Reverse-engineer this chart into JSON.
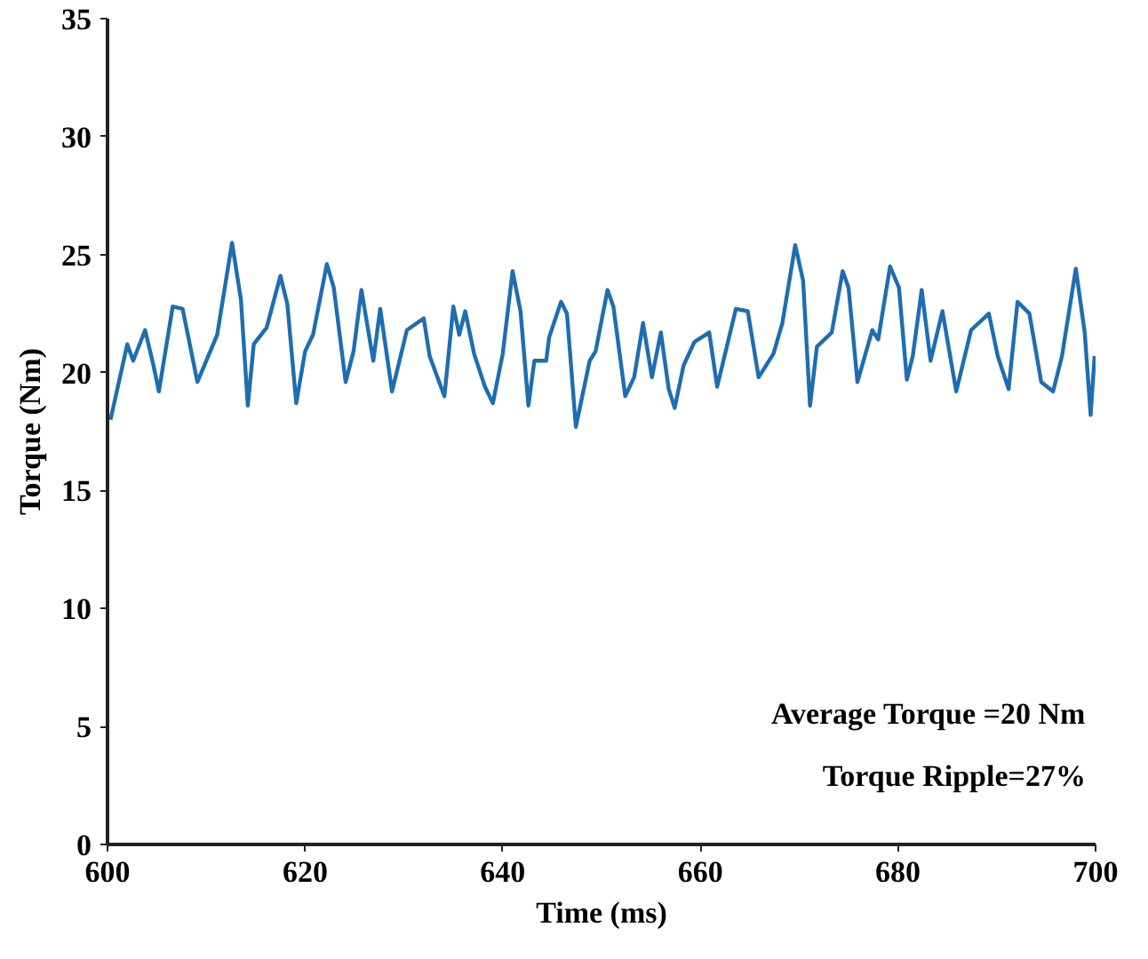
{
  "chart_data": {
    "type": "line",
    "xlabel": "Time (ms)",
    "ylabel": "Torque (Nm)",
    "xlim": [
      600,
      700
    ],
    "ylim": [
      0,
      35
    ],
    "xticks": [
      600,
      620,
      640,
      660,
      680,
      700
    ],
    "yticks": [
      0,
      5,
      10,
      15,
      20,
      25,
      30,
      35
    ],
    "grid": false,
    "annotations": [
      "Average Torque =20 Nm",
      "Torque Ripple=27%"
    ],
    "series": [
      {
        "color": "#1f6db1",
        "x": [
          600.3,
          602,
          602.6,
          603.8,
          604.6,
          605.2,
          606.6,
          607.6,
          609.1,
          609.9,
          611.1,
          612.6,
          613.5,
          614.2,
          614.8,
          616.1,
          617.5,
          618.2,
          619.1,
          620,
          620.8,
          622.2,
          622.9,
          624.1,
          624.9,
          625.7,
          626.9,
          627.6,
          628.8,
          630.3,
          632,
          632.6,
          634.1,
          635,
          635.6,
          636.2,
          637.1,
          638.2,
          639,
          640,
          641,
          641.8,
          642.6,
          643.2,
          644.4,
          644.7,
          645.9,
          646.5,
          647.4,
          648.8,
          649.4,
          650.6,
          651.2,
          652.4,
          653.3,
          654.2,
          655.1,
          656,
          656.8,
          657.4,
          658.3,
          659.4,
          660.9,
          661.7,
          663.6,
          664.8,
          665.9,
          667.4,
          668.3,
          669.6,
          670.4,
          671.1,
          671.8,
          673.3,
          674.4,
          675,
          675.9,
          677.4,
          678,
          679.2,
          680.1,
          680.9,
          681.5,
          682.4,
          683.3,
          684.5,
          685.9,
          687.4,
          689.2,
          690.1,
          691.2,
          692.1,
          693.3,
          694.5,
          695.7,
          696.6,
          698,
          698.9,
          699.5,
          699.9
        ],
        "values": [
          18,
          21.2,
          20.5,
          21.8,
          20.4,
          19.2,
          22.8,
          22.7,
          19.6,
          20.4,
          21.6,
          25.5,
          23.1,
          18.6,
          21.2,
          21.9,
          24.1,
          22.9,
          18.7,
          20.9,
          21.6,
          24.6,
          23.6,
          19.6,
          20.9,
          23.5,
          20.5,
          22.7,
          19.2,
          21.8,
          22.3,
          20.7,
          19,
          22.8,
          21.6,
          22.6,
          20.8,
          19.4,
          18.7,
          20.8,
          24.3,
          22.6,
          18.6,
          20.5,
          20.5,
          21.5,
          23,
          22.5,
          17.7,
          20.5,
          20.9,
          23.5,
          22.8,
          19,
          19.8,
          22.1,
          19.8,
          21.7,
          19.3,
          18.5,
          20.3,
          21.3,
          21.7,
          19.4,
          22.7,
          22.6,
          19.8,
          20.8,
          22.1,
          25.4,
          23.9,
          18.6,
          21.1,
          21.7,
          24.3,
          23.6,
          19.6,
          21.8,
          21.4,
          24.5,
          23.6,
          19.7,
          20.7,
          23.5,
          20.5,
          22.6,
          19.2,
          21.8,
          22.5,
          20.7,
          19.3,
          23,
          22.5,
          19.6,
          19.2,
          20.7,
          24.4,
          21.7,
          18.2,
          20.7
        ]
      }
    ]
  }
}
